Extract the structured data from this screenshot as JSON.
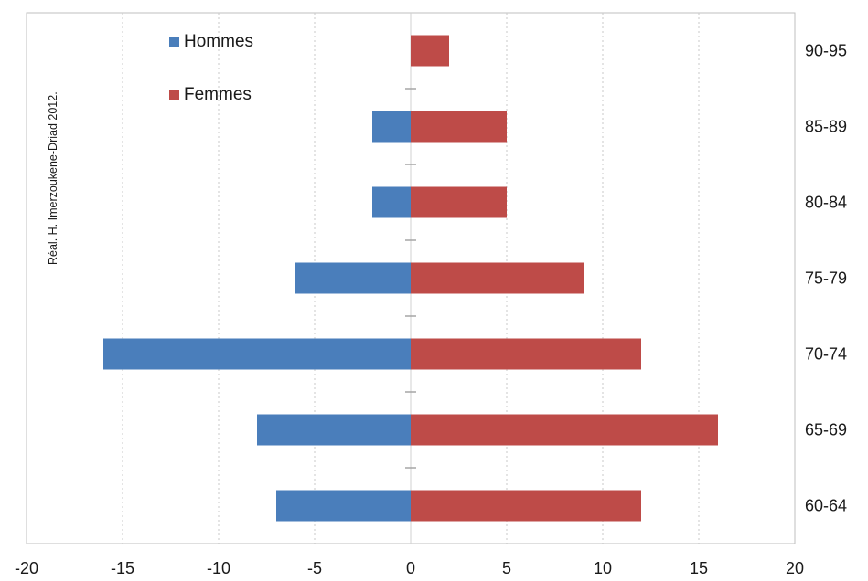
{
  "chart_data": {
    "type": "bar",
    "orientation": "horizontal",
    "categories": [
      "60-64",
      "65-69",
      "70-74",
      "75-79",
      "80-84",
      "85-89",
      "90-95"
    ],
    "series": [
      {
        "name": "Hommes",
        "color": "#4a7ebb",
        "values": [
          -7,
          -8,
          -16,
          -6,
          -2,
          -2,
          0
        ]
      },
      {
        "name": "Femmes",
        "color": "#be4b48",
        "values": [
          12,
          16,
          12,
          9,
          5,
          5,
          2
        ]
      }
    ],
    "xlim": [
      -20,
      20
    ],
    "x_ticks": [
      -20,
      -15,
      -10,
      -5,
      0,
      5,
      10,
      15,
      20
    ],
    "grid": "vertical-dotted",
    "legend_position": "top-left",
    "annotation": "Réal. H. Imerzoukene-Driad 2012."
  }
}
